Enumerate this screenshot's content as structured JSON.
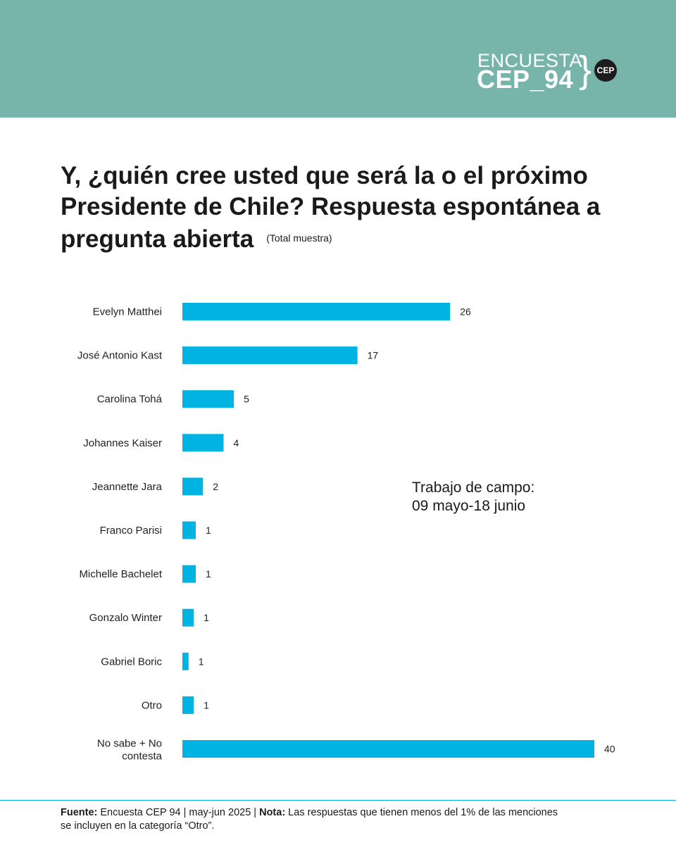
{
  "brand": {
    "line1": "ENCUESTA",
    "line2": "CEP_94",
    "brace": "}",
    "badge": "CEP"
  },
  "title": {
    "text": "Y, ¿quién cree usted que será la o el próximo Presidente de Chile? Respuesta espontánea a pregunta abierta",
    "subtitle": "(Total muestra)"
  },
  "fieldwork": {
    "text": "Trabajo de campo:\n09 mayo-18 junio"
  },
  "colors": {
    "header_bg": "#77b5aa",
    "bar": "#00b3e3",
    "footer_rule": "#00b3e3"
  },
  "chart_data": {
    "type": "bar",
    "orientation": "horizontal",
    "categories": [
      "Evelyn Matthei",
      "José Antonio Kast",
      "Carolina Tohá",
      "Johannes Kaiser",
      "Jeannette Jara",
      "Franco Parisi",
      "Michelle Bachelet",
      "Gonzalo Winter",
      "Gabriel Boric",
      "Otro",
      "No sabe + No contesta"
    ],
    "values": [
      26,
      17,
      5,
      4,
      2,
      1.3,
      1.3,
      1.1,
      0.6,
      1.1,
      40
    ],
    "data_labels": [
      "26",
      "17",
      "5",
      "4",
      "2",
      "1",
      "1",
      "1",
      "1",
      "1",
      "40"
    ],
    "xlim": [
      0,
      40
    ],
    "grid": false,
    "legend": "none"
  },
  "footer": {
    "fuente_label": "Fuente:",
    "fuente_text": " Encuesta CEP 94 | may-jun 2025 | ",
    "nota_label": "Nota:",
    "nota_text": " Las respuestas que tienen menos del 1% de las menciones se incluyen en la categoría “Otro”."
  }
}
